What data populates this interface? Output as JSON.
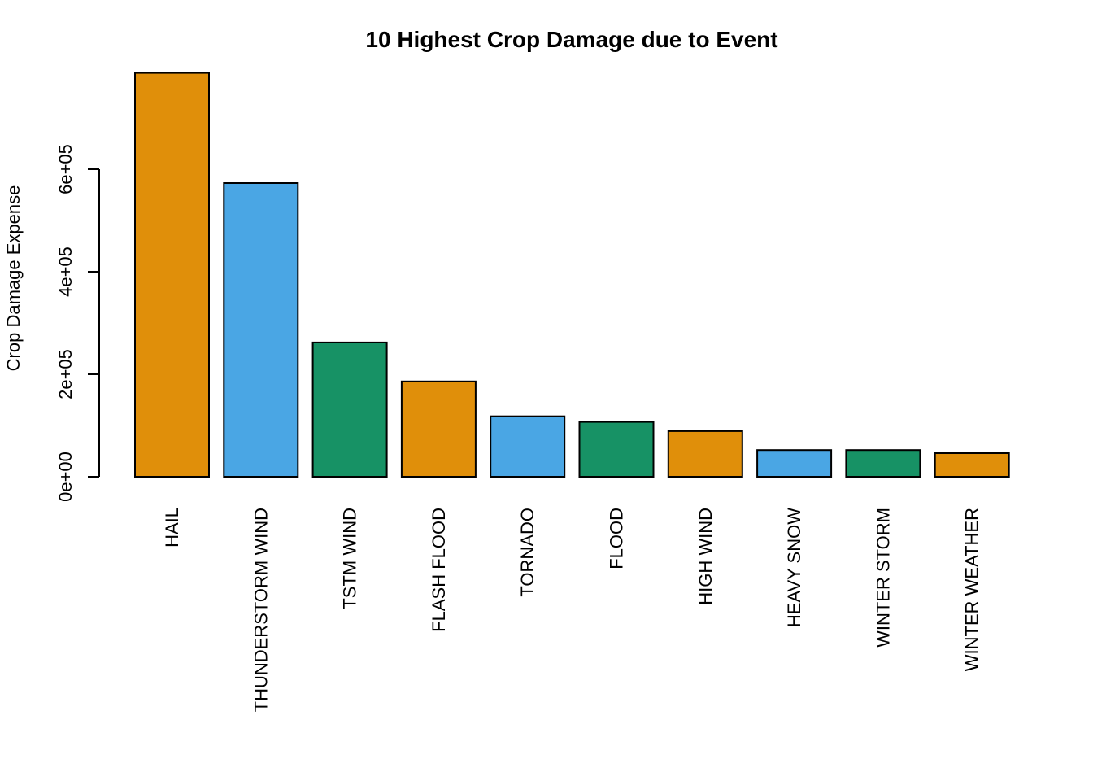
{
  "chart_data": {
    "type": "bar",
    "title": "10 Highest Crop Damage due to Event",
    "xlabel": "",
    "ylabel": "Crop Damage Expense",
    "categories": [
      "HAIL",
      "THUNDERSTORM WIND",
      "TSTM WIND",
      "FLASH FLOOD",
      "TORNADO",
      "FLOOD",
      "HIGH WIND",
      "HEAVY SNOW",
      "WINTER STORM",
      "WINTER WEATHER"
    ],
    "values": [
      788000,
      573000,
      262000,
      186000,
      118000,
      107000,
      89000,
      52000,
      52000,
      46000
    ],
    "colors": [
      "#E08F0A",
      "#4AA6E4",
      "#179265",
      "#E08F0A",
      "#4AA6E4",
      "#179265",
      "#E08F0A",
      "#4AA6E4",
      "#179265",
      "#E08F0A"
    ],
    "yticks": [
      0,
      200000,
      400000,
      600000
    ],
    "ytick_labels": [
      "0e+00",
      "2e+05",
      "4e+05",
      "6e+05"
    ],
    "ylim": [
      0,
      800000
    ],
    "grid": false,
    "legend": "none"
  }
}
